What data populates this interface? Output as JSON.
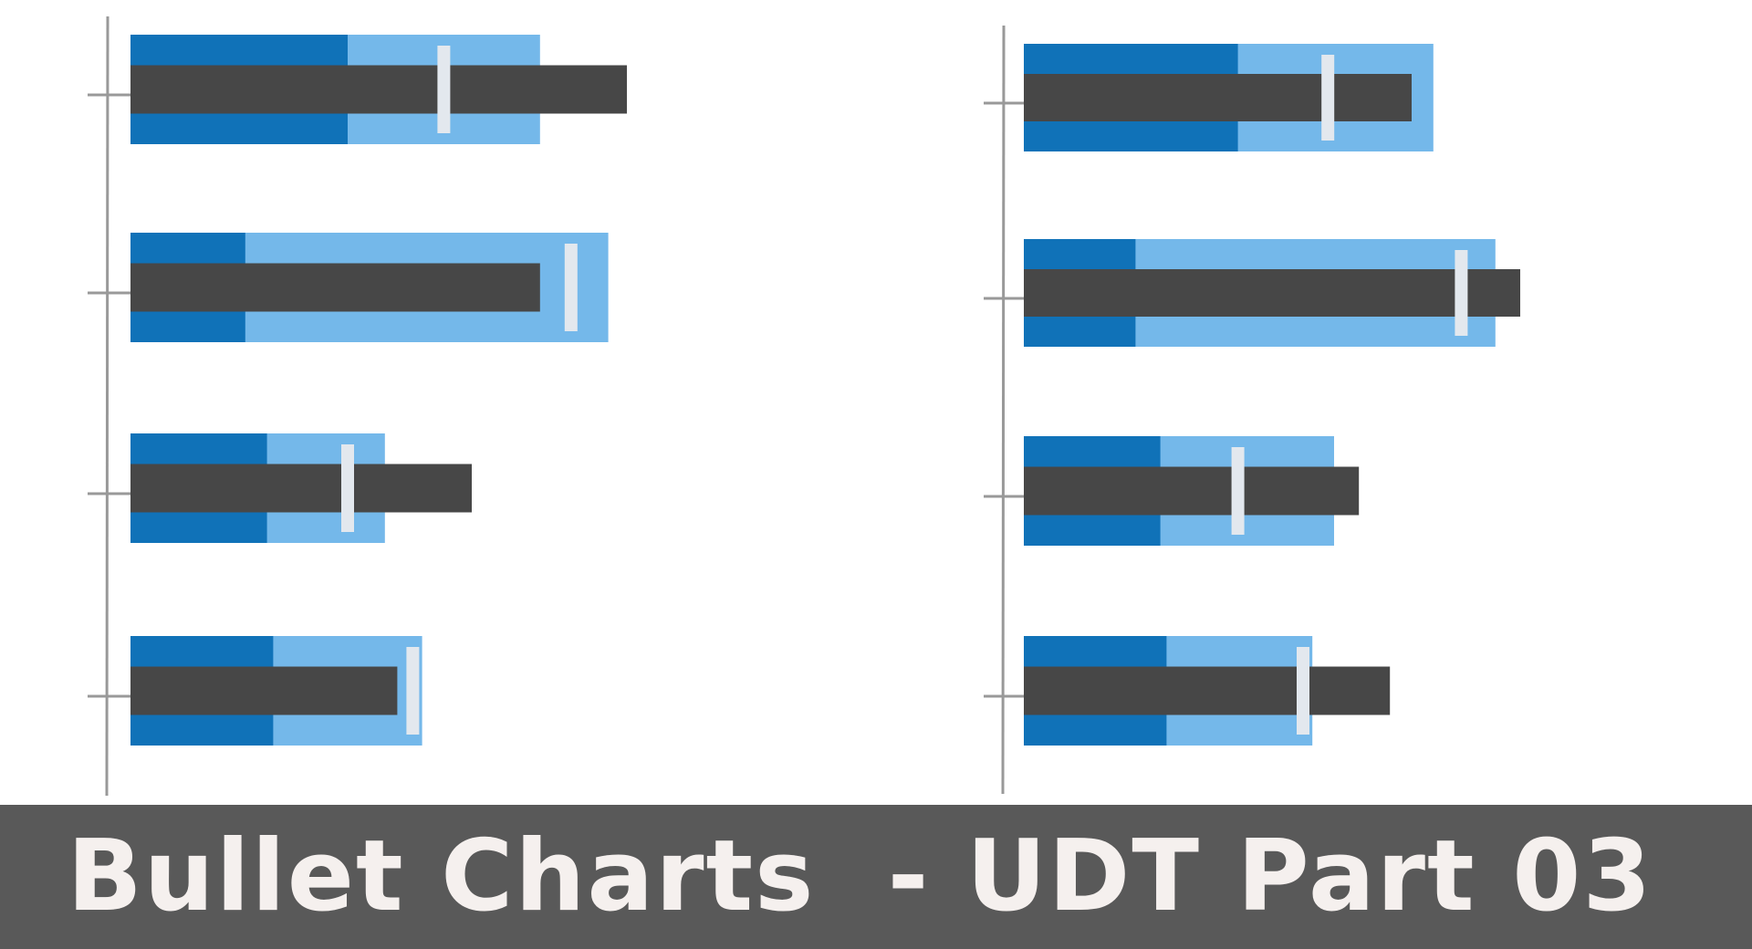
{
  "footer": {
    "title": "Bullet Charts  - UDT Part 03",
    "background": "#595959",
    "text_color": "#F5F0EE"
  },
  "colors": {
    "range_poor": "#1072B8",
    "range_good": "#74B8EA",
    "measure": "#474747",
    "target": "#E3E8EE",
    "axis": "#999999"
  },
  "chart_data": [
    {
      "type": "bullet",
      "orientation": "horizontal",
      "title": "",
      "xlabel": "",
      "ylabel": "",
      "axis_labels_shown": false,
      "xlim": [
        0,
        100
      ],
      "items": [
        {
          "ranges": [
            35,
            66
          ],
          "measure": 80,
          "target": 50.5
        },
        {
          "ranges": [
            18.5,
            77
          ],
          "measure": 66,
          "target": 71
        },
        {
          "ranges": [
            22,
            41
          ],
          "measure": 55,
          "target": 35
        },
        {
          "ranges": [
            23,
            47
          ],
          "measure": 43,
          "target": 45.5
        }
      ]
    },
    {
      "type": "bullet",
      "orientation": "horizontal",
      "title": "",
      "xlabel": "",
      "ylabel": "",
      "axis_labels_shown": false,
      "xlim": [
        0,
        100
      ],
      "items": [
        {
          "ranges": [
            34.5,
            66
          ],
          "measure": 62.5,
          "target": 49
        },
        {
          "ranges": [
            18,
            76
          ],
          "measure": 80,
          "target": 70.5
        },
        {
          "ranges": [
            22,
            50
          ],
          "measure": 54,
          "target": 34.5
        },
        {
          "ranges": [
            23,
            46.5
          ],
          "measure": 59,
          "target": 45
        }
      ]
    }
  ]
}
